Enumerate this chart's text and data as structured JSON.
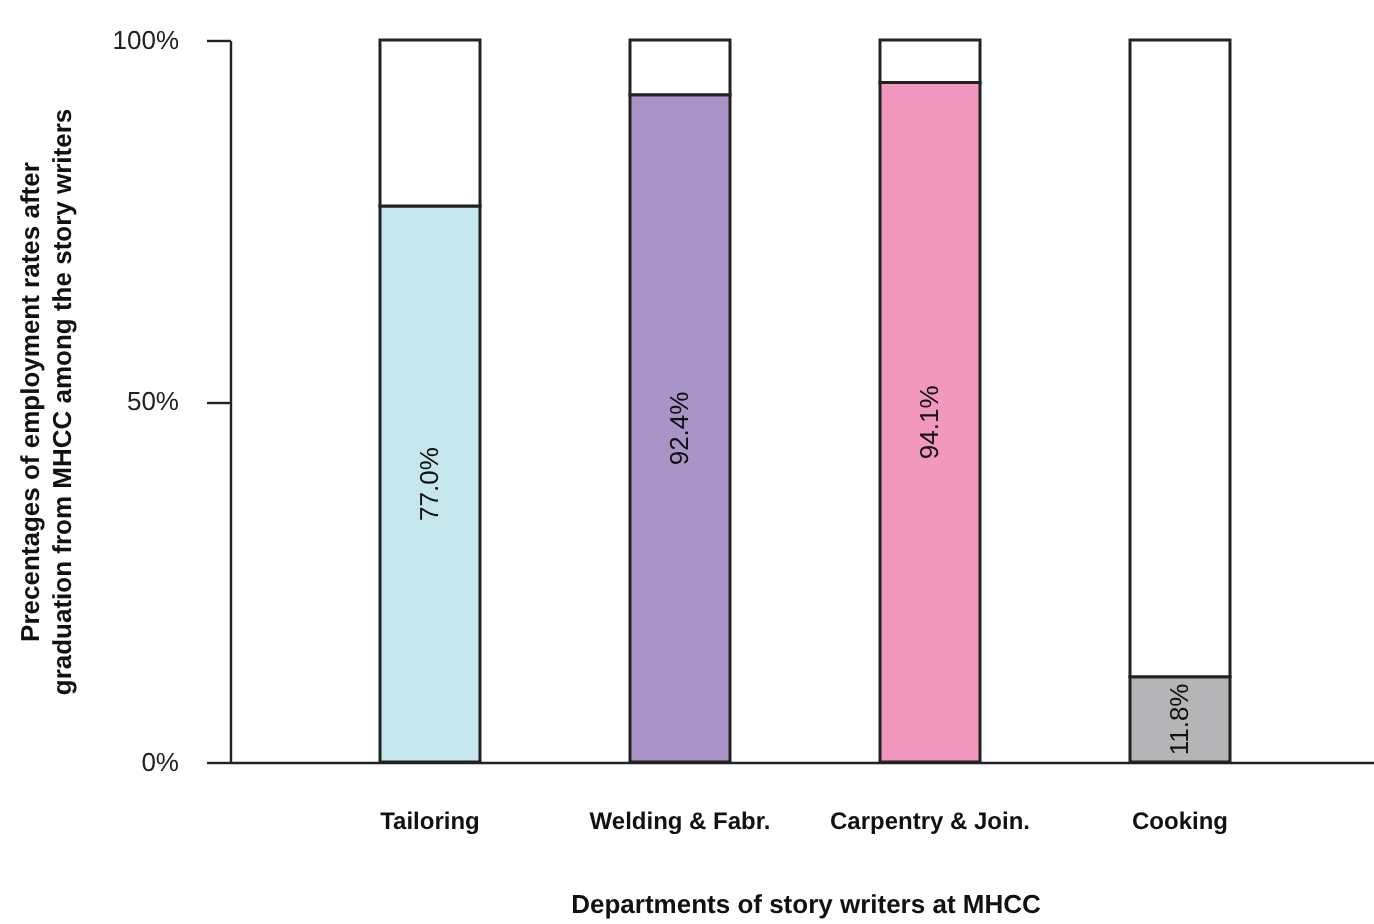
{
  "chart_data": {
    "type": "bar",
    "stacked": true,
    "xlabel": "Departments of story writers at MHCC",
    "ylabel": "Precentages of employment rates after\ngraduation from MHCC among the story writers",
    "categories": [
      "Tailoring",
      "Welding & Fabr.",
      "Carpentry & Join.",
      "Cooking"
    ],
    "series": [
      {
        "colors": [
          "#c5e6ec",
          "#a994c8",
          "#f297be",
          "#b5b5b7"
        ],
        "values": [
          77.0,
          92.4,
          94.1,
          11.8
        ],
        "value_labels": [
          "77.0%",
          "92.4%",
          "94.1%",
          "11.8%"
        ]
      },
      {
        "color": "#ffffff",
        "values": [
          23.0,
          7.6,
          5.9,
          88.2
        ]
      }
    ],
    "ylim": [
      0,
      100
    ],
    "yticks": [
      {
        "value": 0,
        "label": "0%"
      },
      {
        "value": 50,
        "label": "50%"
      },
      {
        "value": 100,
        "label": "100%"
      }
    ],
    "grid": false
  }
}
